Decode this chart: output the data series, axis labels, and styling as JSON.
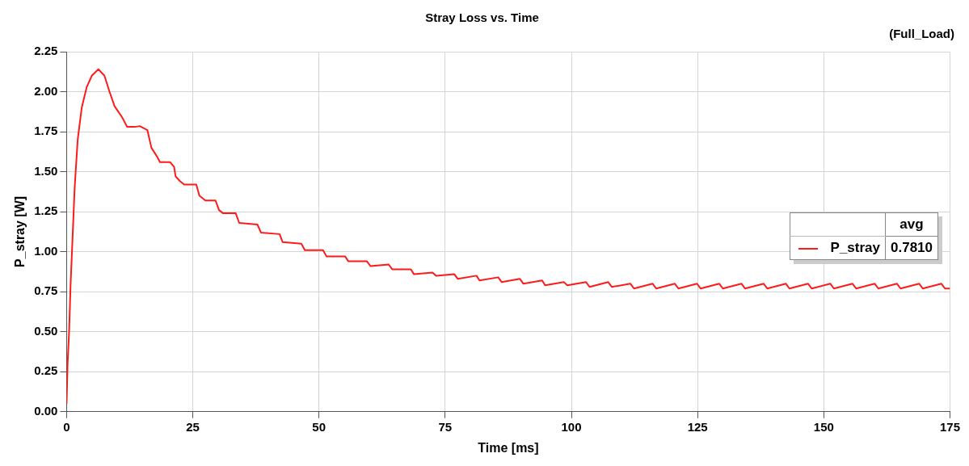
{
  "chart_data": {
    "type": "line",
    "title": "Stray Loss vs. Time",
    "subtitle": "(Full_Load)",
    "xlabel": "Time [ms]",
    "ylabel": "P_stray [W]",
    "xlim": [
      0,
      175
    ],
    "xticks": [
      0,
      25,
      50,
      75,
      100,
      125,
      150,
      175
    ],
    "ylim": [
      0,
      2.25
    ],
    "yticks": [
      {
        "value": 0,
        "label": "0.00"
      },
      0.25,
      {
        "value": 0.5,
        "label": "0.50"
      },
      0.75,
      {
        "value": 1,
        "label": "1.00"
      },
      1.25,
      {
        "value": 1.5,
        "label": "1.50"
      },
      1.75,
      {
        "value": 2,
        "label": "2.00"
      },
      2.25
    ],
    "grid": true,
    "legend": "right",
    "marker": "none",
    "line_style": "solid",
    "annotations": [
      "avg",
      "0.7810"
    ],
    "series": [
      {
        "name": "P_stray",
        "color": "#ff1a1a",
        "x": [
          0,
          0.2,
          0.5,
          0.8,
          1.2,
          1.6,
          2.2,
          3,
          4,
          5,
          6.3,
          7.5,
          8.5,
          9.5,
          11,
          12,
          13.5,
          14.5,
          16,
          16.8,
          18,
          18.5,
          20.5,
          21.3,
          21.6,
          22.5,
          23.3,
          25.7,
          26.3,
          27.5,
          29.5,
          30.2,
          31,
          33.5,
          34.2,
          37.8,
          38.5,
          42.2,
          42.8,
          46.5,
          47.2,
          50.8,
          51.5,
          55.2,
          55.8,
          59.5,
          60.2,
          63.8,
          64.5,
          68.2,
          68.8,
          72.5,
          73.2,
          76.8,
          77.5,
          81.2,
          81.8,
          85.5,
          86.2,
          89.8,
          90.5,
          94.2,
          94.8,
          98.5,
          99.2,
          102.9,
          103.6,
          107.3,
          108,
          111.7,
          112.4,
          116.1,
          116.8,
          120.5,
          121.2,
          124.9,
          125.6,
          129.3,
          130,
          133.7,
          134.4,
          138.1,
          138.8,
          142.5,
          143.2,
          146.9,
          147.6,
          151.3,
          152,
          155.7,
          156.4,
          160.1,
          160.8,
          164.5,
          165.2,
          168.9,
          169.6,
          173.3,
          174,
          175
        ],
        "values": [
          0.05,
          0.3,
          0.5,
          0.8,
          1.1,
          1.4,
          1.7,
          1.9,
          2.03,
          2.1,
          2.14,
          2.1,
          2,
          1.91,
          1.84,
          1.78,
          1.78,
          1.785,
          1.76,
          1.65,
          1.59,
          1.56,
          1.56,
          1.53,
          1.47,
          1.44,
          1.42,
          1.42,
          1.35,
          1.32,
          1.32,
          1.26,
          1.24,
          1.24,
          1.18,
          1.17,
          1.12,
          1.11,
          1.06,
          1.05,
          1.01,
          1.01,
          0.97,
          0.97,
          0.94,
          0.94,
          0.91,
          0.92,
          0.89,
          0.89,
          0.86,
          0.87,
          0.85,
          0.86,
          0.83,
          0.85,
          0.82,
          0.84,
          0.81,
          0.83,
          0.8,
          0.82,
          0.79,
          0.81,
          0.79,
          0.81,
          0.78,
          0.81,
          0.78,
          0.8,
          0.77,
          0.8,
          0.77,
          0.8,
          0.77,
          0.8,
          0.77,
          0.8,
          0.77,
          0.8,
          0.77,
          0.8,
          0.77,
          0.8,
          0.77,
          0.8,
          0.77,
          0.8,
          0.77,
          0.8,
          0.77,
          0.8,
          0.77,
          0.8,
          0.77,
          0.8,
          0.77,
          0.8,
          0.77,
          0.77
        ]
      }
    ]
  }
}
